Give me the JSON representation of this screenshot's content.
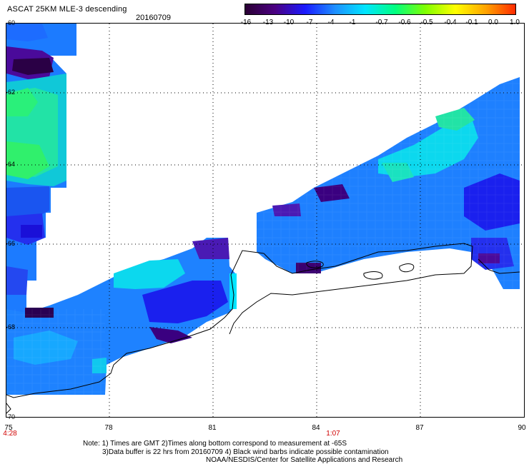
{
  "header": {
    "title": "ASCAT 25KM MLE-3 descending",
    "date": "20160709"
  },
  "colorbar": {
    "labels": [
      "-16",
      "-13",
      "-10",
      "-7",
      "-4",
      "-1",
      "-0.7",
      "-0.6",
      "-0.5",
      "-0.4",
      "-0.1",
      "0.0",
      "1.0"
    ],
    "colors": [
      "#2a0033",
      "#4b0082",
      "#1a1aff",
      "#1e90ff",
      "#00e5ff",
      "#00ff7f",
      "#7fff00",
      "#ffff00",
      "#ffa500",
      "#ff2a00"
    ]
  },
  "axes": {
    "y_ticks": [
      "-60",
      "-62",
      "-64",
      "-66",
      "-68",
      "-70"
    ],
    "x_ticks": [
      "75",
      "78",
      "81",
      "84",
      "87",
      "90"
    ]
  },
  "times": {
    "left": "4:28",
    "center": "1:07"
  },
  "notes": {
    "line1": "Note: 1) Times are GMT 2)Times along bottom correspond to measurement at -65S",
    "line2": "3)Data buffer is 22 hrs from 20160709 4) Black wind barbs indicate possible contamination",
    "line3": "NOAA/NESDIS/Center for Satellite Applications and Research"
  }
}
